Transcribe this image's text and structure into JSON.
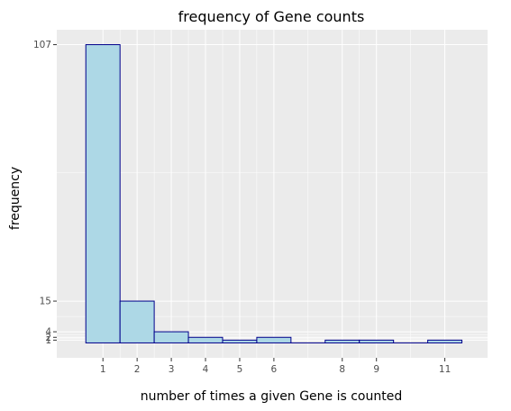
{
  "chart_data": {
    "type": "bar",
    "title": "frequency of Gene counts",
    "xlabel": "number of times a given Gene is counted",
    "ylabel": "frequency",
    "bars": [
      {
        "x0": 0.5,
        "x1": 1.5,
        "value": 107
      },
      {
        "x0": 1.5,
        "x1": 2.5,
        "value": 15
      },
      {
        "x0": 2.5,
        "x1": 3.5,
        "value": 4
      },
      {
        "x0": 3.5,
        "x1": 4.5,
        "value": 2
      },
      {
        "x0": 4.5,
        "x1": 5.5,
        "value": 1
      },
      {
        "x0": 5.5,
        "x1": 6.5,
        "value": 2
      },
      {
        "x0": 6.5,
        "x1": 7.5,
        "value": 0
      },
      {
        "x0": 7.5,
        "x1": 8.5,
        "value": 1
      },
      {
        "x0": 8.5,
        "x1": 9.5,
        "value": 1
      },
      {
        "x0": 9.5,
        "x1": 10.5,
        "value": 0
      },
      {
        "x0": 10.5,
        "x1": 11.5,
        "value": 1
      }
    ],
    "x_ticks": [
      1,
      2,
      3,
      4,
      5,
      6,
      8,
      9,
      11
    ],
    "y_ticks": [
      1,
      2,
      4,
      15,
      107
    ],
    "xlim": [
      -0.35,
      12.25
    ],
    "ylim": [
      -5.35,
      112.35
    ],
    "grid": true,
    "colors": {
      "panel": "#ebebeb",
      "grid": "#ffffff",
      "bar_fill": "#add8e6",
      "bar_edge": "#00008b"
    }
  }
}
